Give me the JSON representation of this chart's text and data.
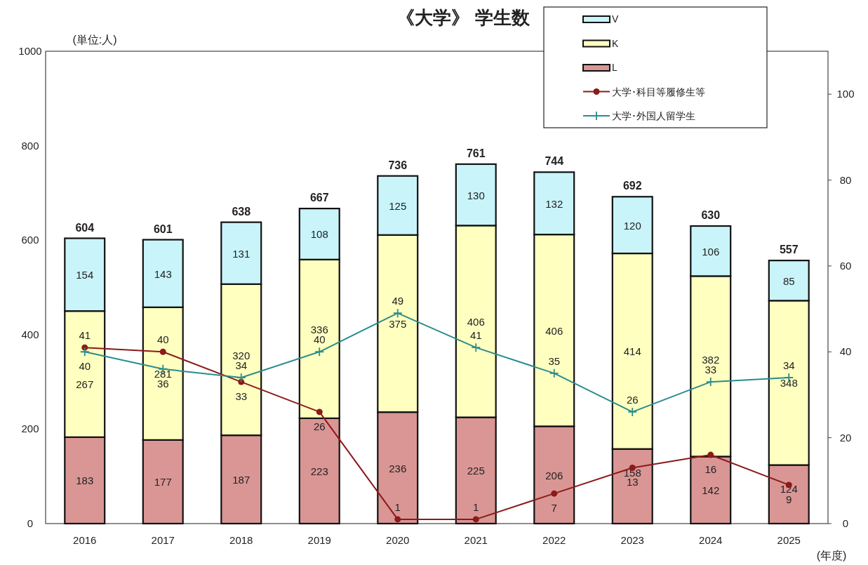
{
  "chart_data": {
    "type": "bar",
    "title": "《大学》 学生数",
    "ylabel": "(単位:人)",
    "xlabel": "(年度)",
    "categories": [
      "2016",
      "2017",
      "2018",
      "2019",
      "2020",
      "2021",
      "2022",
      "2023",
      "2024",
      "2025"
    ],
    "stacked": true,
    "data_labels": true,
    "legend": "top right",
    "grid": false,
    "ylim": [
      0,
      1000
    ],
    "yticks": [
      0,
      200,
      400,
      600,
      800,
      1000
    ],
    "y2lim": [
      0,
      110
    ],
    "y2ticks": [
      0,
      20,
      40,
      60,
      80,
      100
    ],
    "series": [
      {
        "name": "L",
        "color": "#d99694",
        "values": [
          183,
          177,
          187,
          223,
          236,
          225,
          206,
          158,
          142,
          124
        ]
      },
      {
        "name": "K",
        "color": "#ffffc0",
        "values": [
          267,
          281,
          320,
          336,
          375,
          406,
          406,
          414,
          382,
          348
        ]
      },
      {
        "name": "V",
        "color": "#c8f4fa",
        "values": [
          154,
          143,
          131,
          108,
          125,
          130,
          132,
          120,
          106,
          85
        ]
      },
      {
        "name": "大学･科目等履修生等",
        "type": "line",
        "axis": "y2",
        "marker": "circle",
        "color": "#8b1a1a",
        "values": [
          41,
          40,
          33,
          26,
          1,
          1,
          7,
          13,
          16,
          9
        ]
      },
      {
        "name": "大学･外国人留学生",
        "type": "line",
        "axis": "y2",
        "marker": "cross",
        "color": "#2a8c8c",
        "values": [
          40,
          36,
          34,
          40,
          49,
          41,
          35,
          26,
          33,
          34
        ]
      }
    ],
    "totals": [
      "604",
      "601",
      "638",
      "667",
      "736",
      "761",
      "744",
      "692",
      "630",
      "557"
    ]
  }
}
